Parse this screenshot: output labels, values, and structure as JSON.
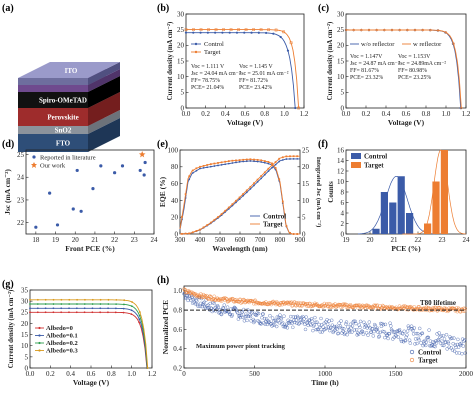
{
  "colors": {
    "blue": "#3B5BA8",
    "orange": "#ED7D31",
    "black": "#000000"
  },
  "panels": [
    {
      "key": "a",
      "label": "(a)"
    },
    {
      "key": "b",
      "label": "(b)"
    },
    {
      "key": "c",
      "label": "(c)"
    },
    {
      "key": "d",
      "label": "(d)"
    },
    {
      "key": "e",
      "label": "(e)"
    },
    {
      "key": "f",
      "label": "(f)"
    },
    {
      "key": "g",
      "label": "(g)"
    },
    {
      "key": "h",
      "label": "(h)"
    }
  ],
  "device_stack": {
    "layers": [
      "FTO",
      "SnO2",
      "Perovskite",
      "Spiro-OMeTAD",
      "MoO3",
      "ITO"
    ]
  },
  "chart_data": [
    {
      "id": "b",
      "type": "line",
      "xlabel": "Voltage (V)",
      "ylabel": "Current density (mA cm⁻²)",
      "xlim": [
        0,
        1.2
      ],
      "ylim": [
        0,
        30
      ],
      "xticks": [
        "0.0",
        "0.2",
        "0.4",
        "0.6",
        "0.8",
        "1.0",
        "1.2"
      ],
      "yticks": [
        "0",
        "5",
        "10",
        "15",
        "20",
        "25",
        "30"
      ],
      "series": [
        {
          "name": "Control",
          "color": "#3B5BA8",
          "jsc": 24.04,
          "voc": 1.111
        },
        {
          "name": "Target",
          "color": "#ED7D31",
          "jsc": 25.01,
          "voc": 1.145
        }
      ],
      "annotations": [
        [
          "Voc = 1.111 V",
          "Jsc = 24.04 mA cm⁻²",
          "FF= 78.75%",
          "PCE= 21.04%"
        ],
        [
          "Voc = 1.145 V",
          "Jsc = 25.01 mA cm⁻²",
          "FF= 81.72%",
          "PCE= 23.42%"
        ]
      ]
    },
    {
      "id": "c",
      "type": "line",
      "xlabel": "Voltage (V)",
      "ylabel": "Current density (mA cm⁻²)",
      "xlim": [
        0,
        1.2
      ],
      "ylim": [
        0,
        30
      ],
      "xticks": [
        "0.0",
        "0.2",
        "0.4",
        "0.6",
        "0.8",
        "1.0",
        "1.2"
      ],
      "yticks": [
        "0",
        "5",
        "10",
        "15",
        "20",
        "25",
        "30"
      ],
      "series": [
        {
          "name": "w/o reflector",
          "color": "#3B5BA8",
          "jsc": 24.87,
          "voc": 1.147
        },
        {
          "name": "w reflector",
          "color": "#ED7D31",
          "jsc": 24.89,
          "voc": 1.153
        }
      ],
      "annotations": [
        [
          "Voc = 1.147V",
          "Jsc = 24.87 mA cm⁻²",
          "FF= 81.67%",
          "PCE= 23.32%"
        ],
        [
          "Voc = 1.153V",
          "Jsc = 24.89mA cm⁻²",
          "FF= 80.98%",
          "PCE= 23.25%"
        ]
      ]
    },
    {
      "id": "d",
      "type": "scatter",
      "xlabel": "Front PCE (%)",
      "ylabel": "Jsc (mA cm⁻²)",
      "xlim": [
        17.5,
        24
      ],
      "ylim": [
        21.5,
        25.2
      ],
      "xticks": [
        "18",
        "19",
        "20",
        "21",
        "22",
        "23",
        "24"
      ],
      "yticks": [
        "22",
        "23",
        "24",
        "25"
      ],
      "series": [
        {
          "name": "Reported in literature",
          "color": "#3B5BA8",
          "marker": "dot",
          "points": [
            [
              18.0,
              21.8
            ],
            [
              18.7,
              23.3
            ],
            [
              19.1,
              21.9
            ],
            [
              19.9,
              22.6
            ],
            [
              20.1,
              24.3
            ],
            [
              20.3,
              22.5
            ],
            [
              20.9,
              23.5
            ],
            [
              21.3,
              24.5
            ],
            [
              22.0,
              24.2
            ],
            [
              22.4,
              24.5
            ],
            [
              23.3,
              24.3
            ],
            [
              23.5,
              24.1
            ],
            [
              23.55,
              24.65
            ]
          ]
        },
        {
          "name": "Our work",
          "color": "#ED7D31",
          "marker": "star",
          "points": [
            [
              23.4,
              25.0
            ]
          ]
        }
      ]
    },
    {
      "id": "e",
      "type": "line",
      "xlabel": "Wavelength (nm)",
      "ylabel": "EQE (%)",
      "ylabel2": "Integrated Jsc (mA cm⁻²)",
      "xlim": [
        300,
        900
      ],
      "ylim": [
        0,
        100
      ],
      "y2lim": [
        0,
        25
      ],
      "xticks": [
        "300",
        "400",
        "500",
        "600",
        "700",
        "800",
        "900"
      ],
      "yticks": [
        "0",
        "20",
        "40",
        "60",
        "80",
        "100"
      ],
      "y2ticks": [
        "0",
        "5",
        "10",
        "15",
        "20",
        "25"
      ],
      "series": [
        {
          "name": "Control",
          "color": "#3B5BA8",
          "eqe": [
            [
              300,
              5
            ],
            [
              320,
              30
            ],
            [
              340,
              62
            ],
            [
              360,
              72
            ],
            [
              380,
              75
            ],
            [
              400,
              78
            ],
            [
              450,
              80
            ],
            [
              500,
              82
            ],
            [
              550,
              84
            ],
            [
              600,
              86
            ],
            [
              650,
              87
            ],
            [
              700,
              86
            ],
            [
              740,
              84
            ],
            [
              760,
              82
            ],
            [
              780,
              76
            ],
            [
              800,
              60
            ],
            [
              815,
              35
            ],
            [
              830,
              10
            ],
            [
              845,
              2
            ],
            [
              860,
              0
            ],
            [
              900,
              0
            ]
          ],
          "integrated": [
            [
              300,
              0
            ],
            [
              350,
              0.2
            ],
            [
              400,
              1.2
            ],
            [
              450,
              3
            ],
            [
              500,
              5.2
            ],
            [
              550,
              7.8
            ],
            [
              600,
              10.5
            ],
            [
              650,
              13.3
            ],
            [
              700,
              16.2
            ],
            [
              750,
              19.2
            ],
            [
              800,
              21.8
            ],
            [
              830,
              22.3
            ],
            [
              860,
              22.35
            ],
            [
              900,
              22.35
            ]
          ]
        },
        {
          "name": "Target",
          "color": "#ED7D31",
          "eqe": [
            [
              300,
              6
            ],
            [
              320,
              35
            ],
            [
              340,
              66
            ],
            [
              360,
              75
            ],
            [
              380,
              78
            ],
            [
              400,
              80
            ],
            [
              450,
              83
            ],
            [
              500,
              85
            ],
            [
              550,
              87
            ],
            [
              600,
              88
            ],
            [
              650,
              89
            ],
            [
              700,
              88
            ],
            [
              740,
              86
            ],
            [
              760,
              84
            ],
            [
              780,
              78
            ],
            [
              800,
              62
            ],
            [
              815,
              37
            ],
            [
              830,
              11
            ],
            [
              845,
              2
            ],
            [
              860,
              0
            ],
            [
              900,
              0
            ]
          ],
          "integrated": [
            [
              300,
              0
            ],
            [
              350,
              0.2
            ],
            [
              400,
              1.3
            ],
            [
              450,
              3.2
            ],
            [
              500,
              5.5
            ],
            [
              550,
              8.2
            ],
            [
              600,
              11
            ],
            [
              650,
              13.9
            ],
            [
              700,
              16.9
            ],
            [
              750,
              19.9
            ],
            [
              800,
              22.6
            ],
            [
              830,
              23.1
            ],
            [
              860,
              23.15
            ],
            [
              900,
              23.15
            ]
          ]
        }
      ]
    },
    {
      "id": "f",
      "type": "bar",
      "xlabel": "PCE (%)",
      "ylabel": "Counts",
      "xlim": [
        19,
        24
      ],
      "ylim": [
        0,
        16
      ],
      "xticks": [
        "19",
        "20",
        "21",
        "22",
        "23",
        "24"
      ],
      "yticks": [
        "0",
        "2",
        "4",
        "6",
        "8",
        "10",
        "12",
        "14",
        "16"
      ],
      "series": [
        {
          "name": "Control",
          "color": "#3B5BA8",
          "bins": [
            [
              20.25,
              1
            ],
            [
              20.6,
              8
            ],
            [
              20.95,
              6
            ],
            [
              21.3,
              11
            ],
            [
              21.65,
              4
            ]
          ],
          "fit": {
            "mu": 21.1,
            "sigma": 0.45,
            "peak": 11
          }
        },
        {
          "name": "Target",
          "color": "#ED7D31",
          "bins": [
            [
              22.4,
              2
            ],
            [
              22.75,
              10
            ],
            [
              23.1,
              16
            ]
          ],
          "fit": {
            "mu": 22.95,
            "sigma": 0.28,
            "peak": 16
          }
        }
      ]
    },
    {
      "id": "g",
      "type": "line",
      "xlabel": "Voltage (V)",
      "ylabel": "Current density (mA cm⁻²)",
      "xlim": [
        0,
        1.2
      ],
      "ylim": [
        0,
        35
      ],
      "xticks": [
        "0.0",
        "0.2",
        "0.4",
        "0.6",
        "0.8",
        "1.0",
        "1.2"
      ],
      "yticks": [
        "0",
        "5",
        "10",
        "15",
        "20",
        "25",
        "30",
        "35"
      ],
      "series": [
        {
          "name": "Albedo=0",
          "color": "#D03030",
          "jsc": 25.0,
          "voc": 1.15
        },
        {
          "name": "Albedo=0.1",
          "color": "#3B5BA8",
          "jsc": 26.8,
          "voc": 1.152
        },
        {
          "name": "Albedo=0.2",
          "color": "#2E9E4E",
          "jsc": 28.7,
          "voc": 1.155
        },
        {
          "name": "Albedo=0.3",
          "color": "#D99A1E",
          "jsc": 30.6,
          "voc": 1.158
        }
      ]
    },
    {
      "id": "h",
      "type": "scatter",
      "xlabel": "Time (h)",
      "ylabel": "Normalized PCE",
      "xlim": [
        0,
        2000
      ],
      "ylim": [
        0.2,
        1.05
      ],
      "xticks": [
        "0",
        "500",
        "1000",
        "1500",
        "2000"
      ],
      "yticks": [
        "0.2",
        "0.4",
        "0.6",
        "0.8",
        "1.0"
      ],
      "threshold": {
        "value": 0.8,
        "label": "T80 lifetime"
      },
      "annotation": "Maximum power piont tracking",
      "series": [
        {
          "name": "Control",
          "color": "#3B5BA8",
          "start": 0.97,
          "end": 0.38
        },
        {
          "name": "Target",
          "color": "#ED7D31",
          "start": 1.0,
          "end": 0.8
        }
      ]
    }
  ]
}
